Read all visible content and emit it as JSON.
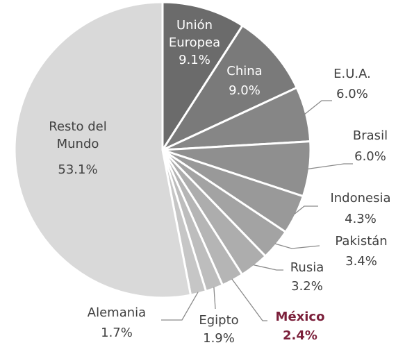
{
  "chart_data": {
    "type": "pie",
    "categories": [
      "Unión Europea",
      "China",
      "E.U.A.",
      "Brasil",
      "Indonesia",
      "Pakistán",
      "Rusia",
      "México",
      "Egipto",
      "Alemania",
      "Resto del Mundo"
    ],
    "values": [
      9.1,
      9.0,
      6.0,
      6.0,
      4.3,
      3.4,
      3.2,
      2.4,
      1.9,
      1.7,
      53.1
    ],
    "value_labels": [
      "9.1%",
      "9.0%",
      "6.0%",
      "6.0%",
      "4.3%",
      "3.4%",
      "3.2%",
      "2.4%",
      "1.9%",
      "1.7%",
      "53.1%"
    ],
    "colors": [
      "#6b6b6b",
      "#7a7a7a",
      "#868686",
      "#8f8f8f",
      "#999999",
      "#a3a3a3",
      "#adadad",
      "#b5b5b5",
      "#bdbdbd",
      "#c6c6c6",
      "#d9d9d9"
    ],
    "highlight": "México",
    "highlight_color": "#7b1f3a"
  }
}
